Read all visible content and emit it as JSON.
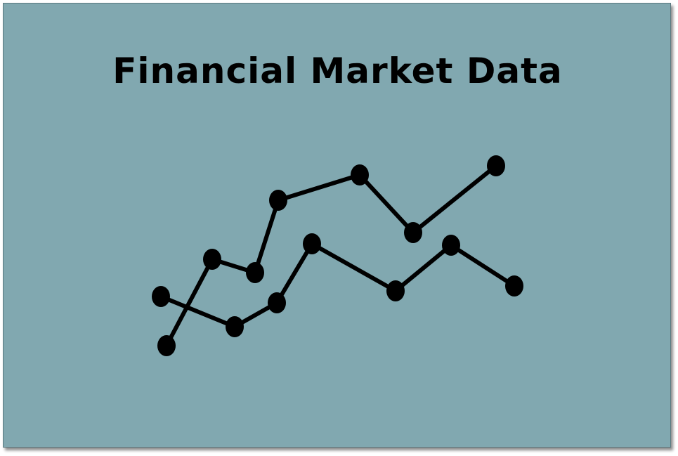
{
  "slide": {
    "title": "Financial Market Data"
  },
  "colors": {
    "background": "#81a8b0",
    "ink": "#000000"
  },
  "icon": {
    "name": "line-chart-icon"
  }
}
